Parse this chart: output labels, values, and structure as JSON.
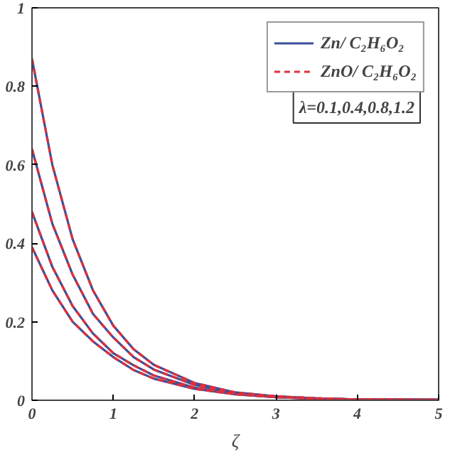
{
  "chart_data": {
    "type": "line",
    "xlabel": "ζ",
    "x": [
      0,
      0.25,
      0.5,
      0.75,
      1,
      1.25,
      1.5,
      2,
      2.5,
      3,
      3.5,
      4,
      5
    ],
    "xlim": [
      0,
      5
    ],
    "xticks": [
      0,
      1,
      2,
      3,
      4,
      5
    ],
    "ylim": [
      0,
      1
    ],
    "yticks": [
      0,
      0.2,
      0.4,
      0.6,
      0.8,
      1
    ],
    "grid": false,
    "legend": "top right",
    "series": [
      {
        "name": "Zn/ C₂H₆O₂",
        "color": "#3a4f9c",
        "line_style": "solid",
        "values": [
          0.87,
          0.6,
          0.41,
          0.28,
          0.19,
          0.13,
          0.09,
          0.044,
          0.02,
          0.01,
          0.005,
          0.002,
          0.001
        ]
      },
      {
        "color": "#3a4f9c",
        "line_style": "solid",
        "values": [
          0.64,
          0.45,
          0.32,
          0.22,
          0.16,
          0.11,
          0.078,
          0.039,
          0.019,
          0.01,
          0.005,
          0.002,
          0.001
        ]
      },
      {
        "color": "#3a4f9c",
        "line_style": "solid",
        "values": [
          0.48,
          0.34,
          0.24,
          0.17,
          0.12,
          0.089,
          0.063,
          0.032,
          0.016,
          0.008,
          0.004,
          0.002,
          0.001
        ]
      },
      {
        "color": "#3a4f9c",
        "line_style": "solid",
        "values": [
          0.39,
          0.28,
          0.2,
          0.15,
          0.11,
          0.077,
          0.055,
          0.029,
          0.015,
          0.008,
          0.004,
          0.002,
          0.001
        ]
      },
      {
        "name": "ZnO/ C₂H₆O₂",
        "color": "#e0303a",
        "line_style": "dashed",
        "values": [
          0.87,
          0.6,
          0.41,
          0.28,
          0.19,
          0.13,
          0.09,
          0.044,
          0.02,
          0.01,
          0.005,
          0.002,
          0.001
        ]
      },
      {
        "color": "#e0303a",
        "line_style": "dashed",
        "values": [
          0.64,
          0.45,
          0.32,
          0.22,
          0.16,
          0.11,
          0.078,
          0.039,
          0.019,
          0.01,
          0.005,
          0.002,
          0.001
        ]
      },
      {
        "color": "#e0303a",
        "line_style": "dashed",
        "values": [
          0.48,
          0.34,
          0.24,
          0.17,
          0.12,
          0.089,
          0.063,
          0.032,
          0.016,
          0.008,
          0.004,
          0.002,
          0.001
        ]
      },
      {
        "color": "#e0303a",
        "line_style": "dashed",
        "values": [
          0.39,
          0.28,
          0.2,
          0.15,
          0.11,
          0.077,
          0.055,
          0.029,
          0.015,
          0.008,
          0.004,
          0.002,
          0.001
        ]
      }
    ],
    "annotations": [
      "λ=0.1,0.4,0.8,1.2"
    ]
  }
}
